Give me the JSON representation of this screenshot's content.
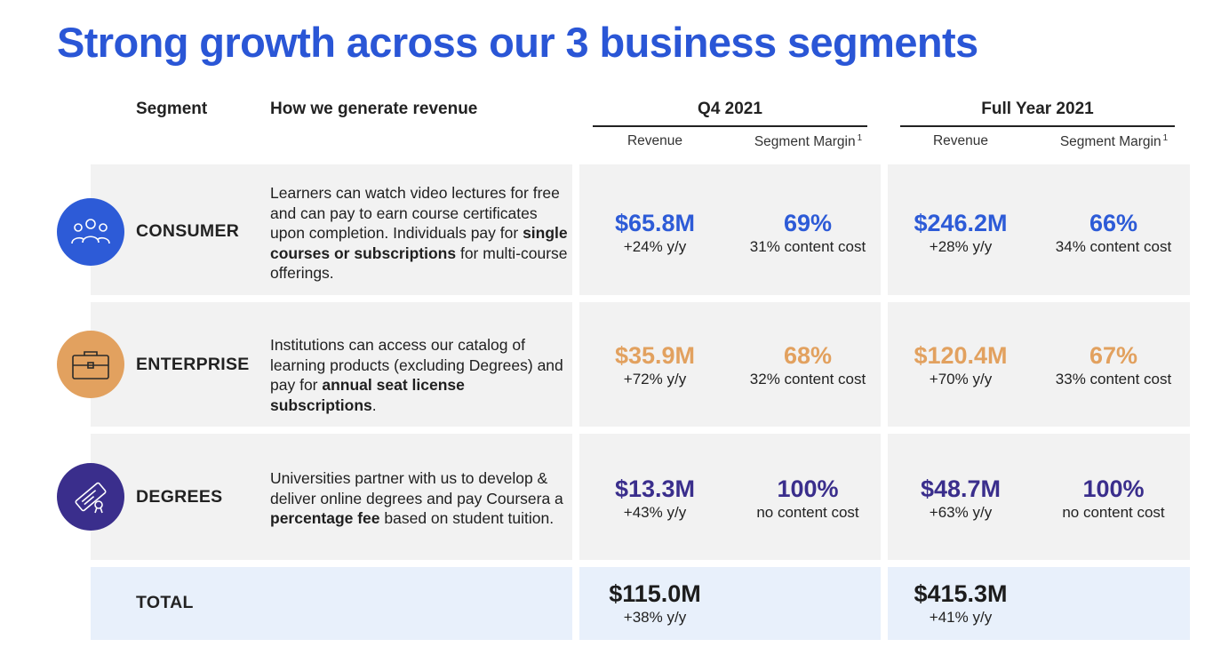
{
  "title": "Strong growth across our 3 business segments",
  "headers": {
    "segment": "Segment",
    "how": "How we generate revenue",
    "q4": "Q4 2021",
    "fy": "Full Year 2021",
    "revenue": "Revenue",
    "segment_margin": "Segment Margin",
    "footnote_marker": "1"
  },
  "colors": {
    "title": "#2a56d6",
    "consumer": "#2d5bd7",
    "enterprise": "#e2a15f",
    "degrees": "#3a2e8c",
    "panel": "#f2f2f2",
    "total_panel": "#e8f0fb"
  },
  "rows": [
    {
      "name": "CONSUMER",
      "icon": "people-icon",
      "desc": {
        "pre": "Learners can watch video lectures for free and can pay to earn course certificates upon completion. Individuals pay for ",
        "bold": "single courses or subscriptions",
        "post": " for multi-course offerings."
      },
      "q4_revenue": "$65.8M",
      "q4_growth": "+24% y/y",
      "q4_margin": "69%",
      "q4_margin_note": "31% content cost",
      "fy_revenue": "$246.2M",
      "fy_growth": "+28% y/y",
      "fy_margin": "66%",
      "fy_margin_note": "34% content cost"
    },
    {
      "name": "ENTERPRISE",
      "icon": "briefcase-icon",
      "desc": {
        "pre": "Institutions can access our catalog of learning products (excluding Degrees) and pay for ",
        "bold": "annual seat license subscriptions",
        "post": "."
      },
      "q4_revenue": "$35.9M",
      "q4_growth": "+72% y/y",
      "q4_margin": "68%",
      "q4_margin_note": "32% content cost",
      "fy_revenue": "$120.4M",
      "fy_growth": "+70% y/y",
      "fy_margin": "67%",
      "fy_margin_note": "33% content cost"
    },
    {
      "name": "DEGREES",
      "icon": "diploma-icon",
      "desc": {
        "pre": "Universities partner with us to develop & deliver online degrees and pay Coursera a ",
        "bold": "percentage fee",
        "post": " based on student tuition."
      },
      "q4_revenue": "$13.3M",
      "q4_growth": "+43% y/y",
      "q4_margin": "100%",
      "q4_margin_note": "no content cost",
      "fy_revenue": "$48.7M",
      "fy_growth": "+63% y/y",
      "fy_margin": "100%",
      "fy_margin_note": "no content cost"
    }
  ],
  "total": {
    "name": "TOTAL",
    "q4_revenue": "$115.0M",
    "q4_growth": "+38% y/y",
    "fy_revenue": "$415.3M",
    "fy_growth": "+41% y/y"
  }
}
